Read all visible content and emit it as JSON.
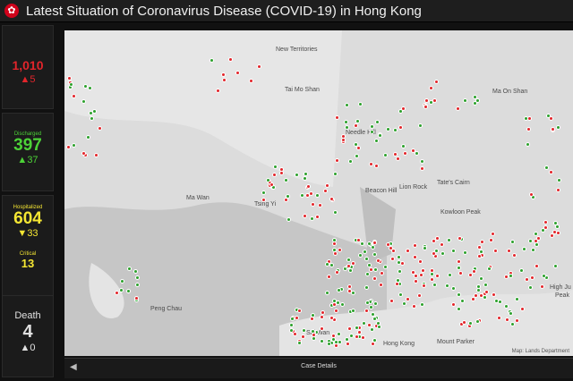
{
  "header": {
    "title": "Latest Situation of Coronavirus Disease (COVID-19) in Hong Kong",
    "logo_icon": "bauhinia-icon"
  },
  "stats": {
    "confirmed": {
      "label": "",
      "value": "1,010",
      "delta": "5",
      "delta_icon": "triangle-up-icon",
      "color": "#e2252b"
    },
    "discharged": {
      "label": "Discharged",
      "value": "397",
      "delta": "37",
      "delta_icon": "triangle-up-icon",
      "color": "#4cd137"
    },
    "hospitalized": {
      "label": "Hospitalized",
      "value": "604",
      "delta": "33",
      "delta_icon": "triangle-down-icon",
      "color": "#f5e633"
    },
    "critical": {
      "label": "Critical",
      "value": "13"
    },
    "death": {
      "label": "Death",
      "value": "4",
      "delta": "0",
      "delta_icon": "triangle-up-icon"
    }
  },
  "map": {
    "places": [
      "New Territories",
      "Tai Mo Shan",
      "Ma On Shan",
      "Needle Hill",
      "Tate's Cairn",
      "Lion Rock",
      "Beacon Hill",
      "Kowloon Peak",
      "Ma Wan",
      "Tsing Yi",
      "Peng Chau",
      "High Ju",
      "Peak",
      "Mount Parker",
      "Sai Wan",
      "Hong Kong"
    ],
    "attribution": "Map: Lands Department",
    "colors": {
      "discharged": "#2ca02c",
      "hospitalized": "#e2252b"
    }
  },
  "bottombar": {
    "label": "Case Details",
    "toggle_icon": "chevron-left-icon"
  }
}
